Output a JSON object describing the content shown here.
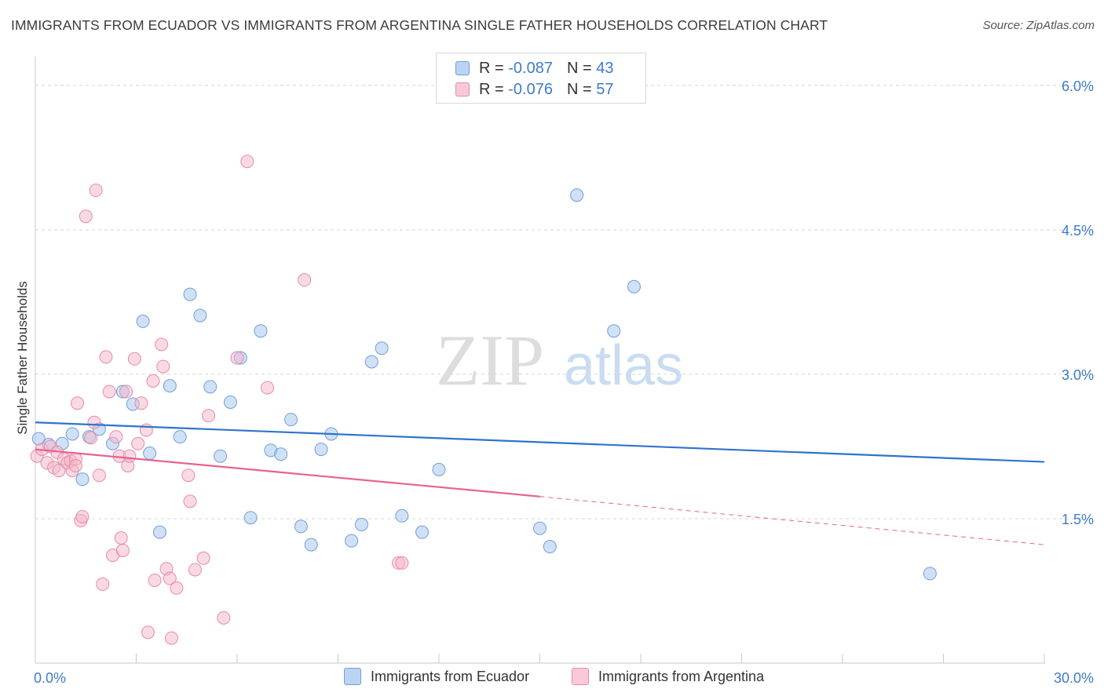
{
  "title": "IMMIGRANTS FROM ECUADOR VS IMMIGRANTS FROM ARGENTINA SINGLE FATHER HOUSEHOLDS CORRELATION CHART",
  "source": "Source: ZipAtlas.com",
  "watermark": {
    "zip": "ZIP",
    "atlas": "atlas"
  },
  "legend": {
    "rows": [
      {
        "r_label": "R = ",
        "r_value": "-0.087",
        "n_label": "N = ",
        "n_value": "43"
      },
      {
        "r_label": "R = ",
        "r_value": "-0.076",
        "n_label": "N = ",
        "n_value": "57"
      }
    ]
  },
  "colors": {
    "ecuador_fill": "#aac8ef",
    "ecuador_stroke": "#6e9fdd",
    "ecuador_line": "#2e74cc",
    "argentina_fill": "#f4b6c9",
    "argentina_stroke": "#e98aa8",
    "argentina_line": "#e8628f",
    "tick_text": "#3d7cc9",
    "grid": "#d5d5d5"
  },
  "chart_data": {
    "type": "scatter",
    "xlabel": "",
    "ylabel": "Single Father Households",
    "xlim": [
      0,
      30
    ],
    "ylim": [
      0,
      6.3
    ],
    "x_tick_labels": [
      "0.0%",
      "30.0%"
    ],
    "y_ticks": [
      1.5,
      3.0,
      4.5,
      6.0
    ],
    "y_tick_labels": [
      "1.5%",
      "3.0%",
      "4.5%",
      "6.0%"
    ],
    "grid": true,
    "series": [
      {
        "name": "Immigrants from Ecuador",
        "r": -0.087,
        "n": 43,
        "trend": {
          "x0": 0,
          "y0": 2.5,
          "x1": 30,
          "y1": 2.09
        },
        "points": [
          [
            0.1,
            2.33
          ],
          [
            0.4,
            2.27
          ],
          [
            0.8,
            2.28
          ],
          [
            1.1,
            2.38
          ],
          [
            1.4,
            1.91
          ],
          [
            1.6,
            2.35
          ],
          [
            1.9,
            2.43
          ],
          [
            2.3,
            2.28
          ],
          [
            2.6,
            2.82
          ],
          [
            2.9,
            2.69
          ],
          [
            3.2,
            3.55
          ],
          [
            3.4,
            2.18
          ],
          [
            3.7,
            1.36
          ],
          [
            4.0,
            2.88
          ],
          [
            4.3,
            2.35
          ],
          [
            4.6,
            3.83
          ],
          [
            4.9,
            3.61
          ],
          [
            5.2,
            2.87
          ],
          [
            5.5,
            2.15
          ],
          [
            5.8,
            2.71
          ],
          [
            6.1,
            3.17
          ],
          [
            6.4,
            1.51
          ],
          [
            6.7,
            3.45
          ],
          [
            7.0,
            2.21
          ],
          [
            7.3,
            2.17
          ],
          [
            7.6,
            2.53
          ],
          [
            7.9,
            1.42
          ],
          [
            8.2,
            1.23
          ],
          [
            8.5,
            2.22
          ],
          [
            8.8,
            2.38
          ],
          [
            9.4,
            1.27
          ],
          [
            9.7,
            1.44
          ],
          [
            10.0,
            3.13
          ],
          [
            10.3,
            3.27
          ],
          [
            10.9,
            1.53
          ],
          [
            11.5,
            1.36
          ],
          [
            12.0,
            2.01
          ],
          [
            15.0,
            1.4
          ],
          [
            15.3,
            1.21
          ],
          [
            16.1,
            4.86
          ],
          [
            17.2,
            3.45
          ],
          [
            17.8,
            3.91
          ],
          [
            26.6,
            0.93
          ]
        ]
      },
      {
        "name": "Immigrants from Argentina",
        "r": -0.076,
        "n": 57,
        "trend": {
          "x0": 0,
          "y0": 2.22,
          "x1": 15,
          "y1": 1.73,
          "dash_to_x": 30,
          "dash_to_y": 1.23
        },
        "points": [
          [
            0.05,
            2.15
          ],
          [
            0.2,
            2.22
          ],
          [
            0.35,
            2.08
          ],
          [
            0.45,
            2.25
          ],
          [
            0.55,
            2.03
          ],
          [
            0.65,
            2.19
          ],
          [
            0.7,
            2.0
          ],
          [
            0.85,
            2.12
          ],
          [
            0.95,
            2.08
          ],
          [
            1.05,
            2.1
          ],
          [
            1.1,
            2.0
          ],
          [
            1.2,
            2.12
          ],
          [
            1.25,
            2.7
          ],
          [
            1.35,
            1.48
          ],
          [
            1.4,
            1.52
          ],
          [
            1.5,
            4.64
          ],
          [
            1.65,
            2.34
          ],
          [
            1.75,
            2.5
          ],
          [
            1.8,
            4.91
          ],
          [
            1.9,
            1.95
          ],
          [
            2.0,
            0.82
          ],
          [
            2.1,
            3.18
          ],
          [
            2.2,
            2.82
          ],
          [
            2.3,
            1.12
          ],
          [
            2.4,
            2.35
          ],
          [
            2.5,
            2.15
          ],
          [
            2.55,
            1.3
          ],
          [
            2.6,
            1.17
          ],
          [
            2.7,
            2.82
          ],
          [
            2.75,
            2.05
          ],
          [
            2.8,
            2.15
          ],
          [
            2.95,
            3.16
          ],
          [
            3.05,
            2.28
          ],
          [
            3.15,
            2.7
          ],
          [
            3.3,
            2.42
          ],
          [
            3.35,
            0.32
          ],
          [
            3.5,
            2.93
          ],
          [
            3.55,
            0.86
          ],
          [
            3.75,
            3.31
          ],
          [
            3.8,
            3.08
          ],
          [
            3.9,
            0.98
          ],
          [
            4.0,
            0.88
          ],
          [
            4.05,
            0.26
          ],
          [
            4.2,
            0.78
          ],
          [
            4.55,
            1.95
          ],
          [
            4.6,
            1.68
          ],
          [
            4.75,
            0.97
          ],
          [
            5.0,
            1.09
          ],
          [
            5.15,
            2.57
          ],
          [
            5.6,
            0.47
          ],
          [
            6.0,
            3.17
          ],
          [
            6.3,
            5.21
          ],
          [
            6.9,
            2.86
          ],
          [
            8.0,
            3.98
          ],
          [
            10.8,
            1.04
          ],
          [
            10.9,
            1.04
          ],
          [
            1.2,
            2.05
          ]
        ]
      }
    ]
  },
  "bottom_legend": [
    "Immigrants from Ecuador",
    "Immigrants from Argentina"
  ]
}
